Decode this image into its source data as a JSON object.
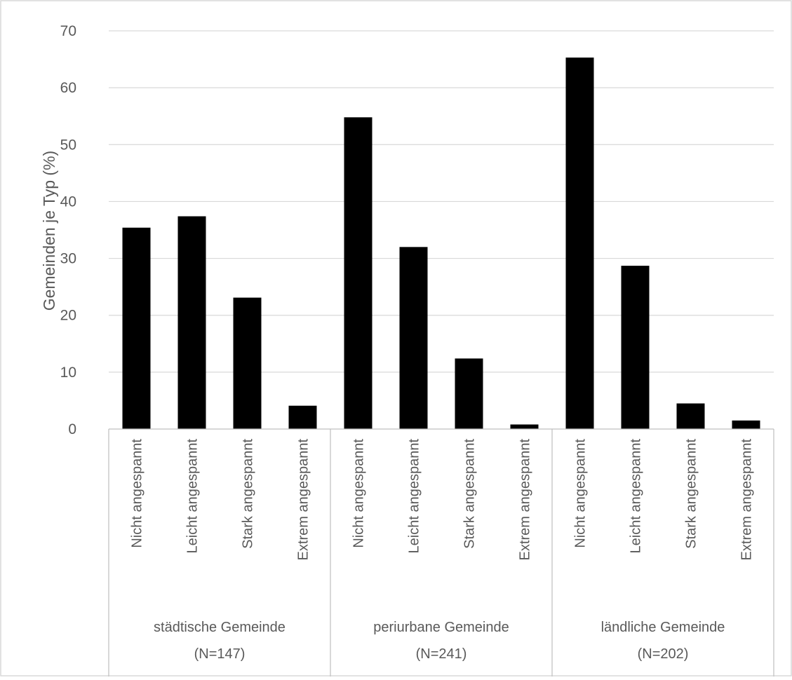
{
  "chart_data": {
    "type": "bar",
    "title": "",
    "xlabel": "",
    "ylabel": "Gemeinden je Typ (%)",
    "ylim": [
      0,
      70
    ],
    "yticks": [
      0,
      10,
      20,
      30,
      40,
      50,
      60,
      70
    ],
    "grid": true,
    "legend": "none",
    "color": "#000000",
    "groups": [
      {
        "name": "städtische Gemeinde",
        "n_label": "(N=147)",
        "categories": [
          "Nicht angespannt",
          "Leicht angespannt",
          "Stark angespannt",
          "Extrem angespannt"
        ],
        "values": [
          35.4,
          37.4,
          23.1,
          4.1
        ]
      },
      {
        "name": "periurbane Gemeinde",
        "n_label": "(N=241)",
        "categories": [
          "Nicht angespannt",
          "Leicht angespannt",
          "Stark angespannt",
          "Extrem angespannt"
        ],
        "values": [
          54.8,
          32.0,
          12.4,
          0.8
        ]
      },
      {
        "name": "ländliche Gemeinde",
        "n_label": "(N=202)",
        "categories": [
          "Nicht angespannt",
          "Leicht angespannt",
          "Stark angespannt",
          "Extrem angespannt"
        ],
        "values": [
          65.3,
          28.7,
          4.5,
          1.5
        ]
      }
    ]
  }
}
